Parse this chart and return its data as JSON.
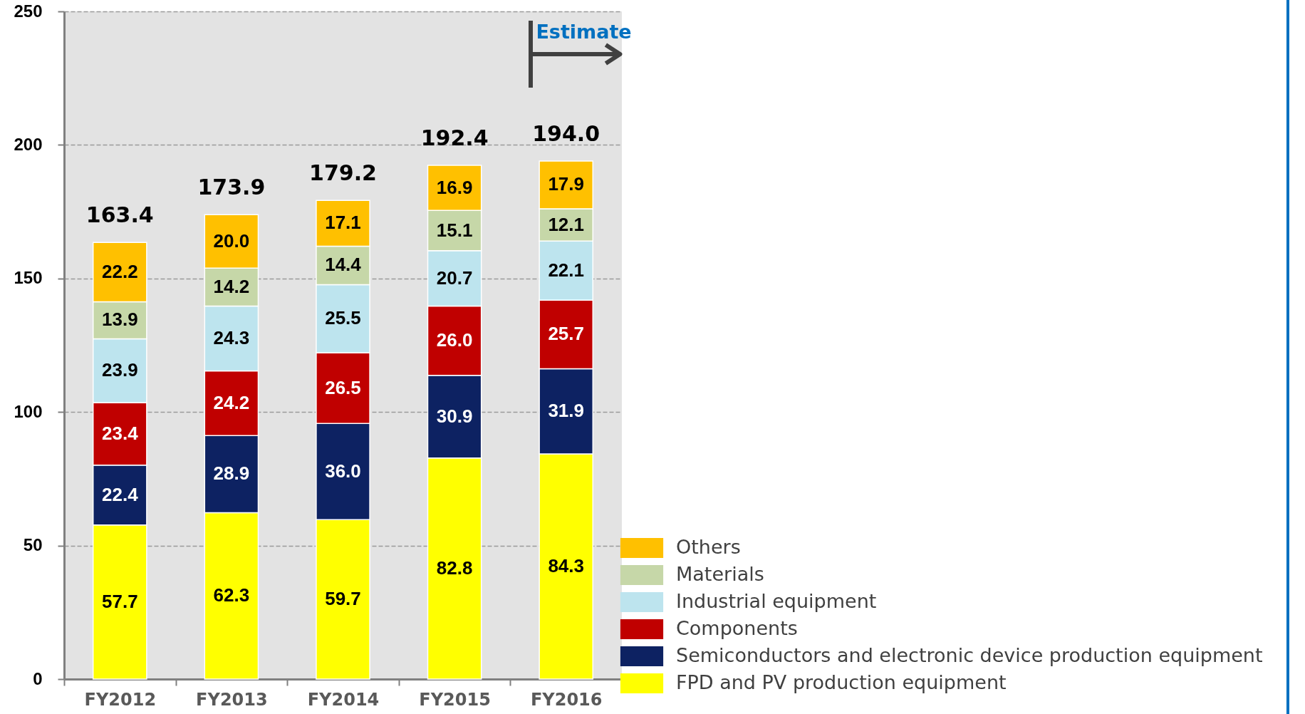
{
  "chart_data": {
    "type": "bar",
    "categories": [
      "FY2012",
      "FY2013",
      "FY2014",
      "FY2015",
      "FY2016"
    ],
    "series": [
      {
        "name": "FPD and PV production equipment",
        "color": "#ffff00",
        "values": [
          57.7,
          62.3,
          59.7,
          82.8,
          84.3
        ],
        "value_labels": [
          "57.7",
          "62.3",
          "59.7",
          "82.8",
          "84.3"
        ]
      },
      {
        "name": "Semiconductors and electronic device production equipment",
        "color": "#0d2262",
        "values": [
          22.4,
          28.9,
          36.0,
          30.9,
          31.9
        ],
        "value_labels": [
          "22.4",
          "28.9",
          "36.0",
          "30.9",
          "31.9"
        ]
      },
      {
        "name": "Components",
        "color": "#c00000",
        "values": [
          23.4,
          24.2,
          26.5,
          26.0,
          25.7
        ],
        "value_labels": [
          "23.4",
          "24.2",
          "26.5",
          "26.0",
          "25.7"
        ]
      },
      {
        "name": "Industrial equipment",
        "color": "#bde4ee",
        "values": [
          23.9,
          24.3,
          25.5,
          20.7,
          22.1
        ],
        "value_labels": [
          "23.9",
          "24.3",
          "25.5",
          "20.7",
          "22.1"
        ]
      },
      {
        "name": "Materials",
        "color": "#c6d7a8",
        "values": [
          13.9,
          14.2,
          14.4,
          15.1,
          12.1
        ],
        "value_labels": [
          "13.9",
          "14.2",
          "14.4",
          "15.1",
          "12.1"
        ]
      },
      {
        "name": "Others",
        "color": "#ffc000",
        "values": [
          22.2,
          20.0,
          17.1,
          16.9,
          17.9
        ],
        "value_labels": [
          "22.2",
          "20.0",
          "17.1",
          "16.9",
          "17.9"
        ]
      }
    ],
    "stacked": true,
    "totals": [
      "163.4",
      "173.9",
      "179.2",
      "192.4",
      "194.0"
    ],
    "ylim": [
      0,
      250
    ],
    "yticks": [
      0,
      50,
      100,
      150,
      200,
      250
    ],
    "grid": "y",
    "legend": "bottom right",
    "annotations": [
      "Estimate"
    ]
  }
}
